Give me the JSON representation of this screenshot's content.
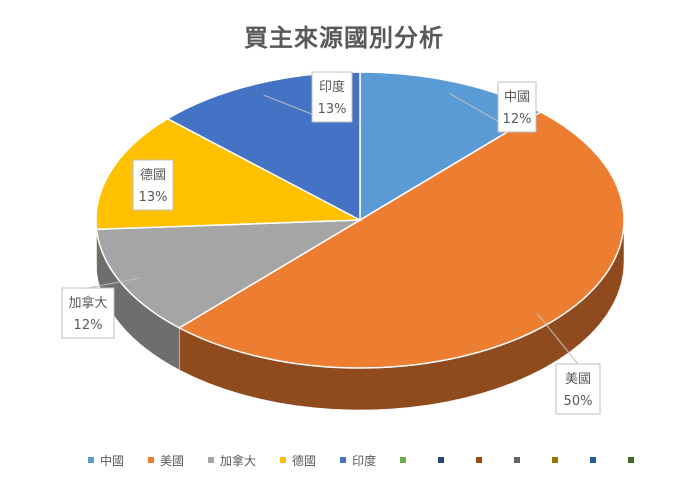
{
  "chart_data": {
    "type": "pie",
    "title": "買主來源國別分析",
    "categories": [
      "中國",
      "美國",
      "加拿大",
      "德國",
      "印度"
    ],
    "values": [
      12,
      50,
      12,
      13,
      13
    ],
    "value_labels": [
      "12%",
      "50%",
      "12%",
      "13%",
      "13%"
    ],
    "colors": [
      "#5B9BD5",
      "#ED7D31",
      "#A5A5A5",
      "#FFC000",
      "#4472C4"
    ],
    "side_colors": [
      "#3F74A6",
      "#8F4A1D",
      "#6E6E6E",
      "#B08400",
      "#2B4D86"
    ],
    "style": "3d",
    "legend": "bottom",
    "extra_legend_colors": [
      "#70AD47",
      "#264478",
      "#9E480E",
      "#636363",
      "#997300",
      "#255E91",
      "#43682B"
    ]
  }
}
